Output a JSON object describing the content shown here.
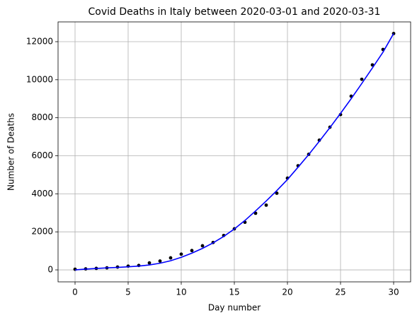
{
  "chart_data": {
    "type": "line",
    "title": "Covid Deaths in Italy between 2020-03-01 and 2020-03-31",
    "x_label": "Day number",
    "y_label": "Number of Deaths",
    "x": [
      0,
      1,
      2,
      3,
      4,
      5,
      6,
      7,
      8,
      9,
      10,
      11,
      12,
      13,
      14,
      15,
      16,
      17,
      18,
      19,
      20,
      21,
      22,
      23,
      24,
      25,
      26,
      27,
      28,
      29,
      30
    ],
    "series": [
      {
        "color": "#000000",
        "style": "dots",
        "values": [
          34,
          52,
          79,
          107,
          148,
          197,
          233,
          366,
          463,
          631,
          827,
          1016,
          1266,
          1441,
          1809,
          2158,
          2503,
          2978,
          3405,
          4032,
          4825,
          5476,
          6077,
          6820,
          7503,
          8165,
          9134,
          10023,
          10779,
          11591,
          12428
        ]
      },
      {
        "color": "#0000ff",
        "style": "line",
        "values": [
          0,
          40,
          75,
          105,
          130,
          160,
          200,
          260,
          350,
          480,
          660,
          880,
          1130,
          1420,
          1760,
          2150,
          2600,
          3100,
          3620,
          4170,
          4750,
          5400,
          6060,
          6760,
          7480,
          8230,
          9000,
          9800,
          10620,
          11450,
          12430
        ]
      }
    ],
    "xlim": [
      -1.6,
      31.6
    ],
    "ylim": [
      -630,
      13040
    ],
    "xticks": [
      0,
      5,
      10,
      15,
      20,
      25,
      30
    ],
    "yticks": [
      0,
      2000,
      4000,
      6000,
      8000,
      10000,
      12000
    ],
    "grid": true
  }
}
